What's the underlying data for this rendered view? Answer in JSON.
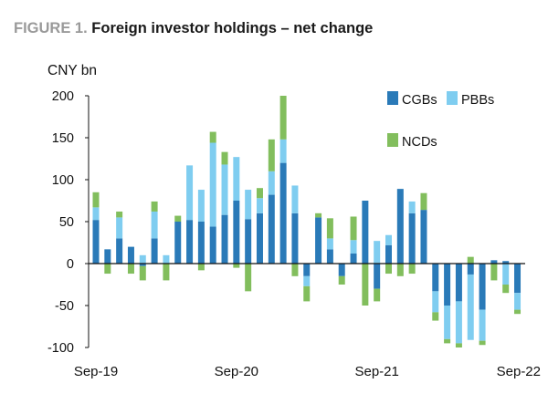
{
  "figure_label": "FIGURE 1.",
  "figure_title": "Foreign investor holdings – net change",
  "chart_data": {
    "type": "bar",
    "stacked": true,
    "title": "Foreign investor holdings – net change",
    "ylabel": "CNY bn",
    "xlabel": "",
    "ylim": [
      -100,
      200
    ],
    "yticks": [
      -100,
      -50,
      0,
      50,
      100,
      150,
      200
    ],
    "ytick_labels": [
      "-100",
      "-50",
      "0",
      "50",
      "100",
      "150",
      "200"
    ],
    "grid": false,
    "legend": [
      "CGBs",
      "PBBs",
      "NCDs"
    ],
    "legend_position": "top-right",
    "x_tick_labels": [
      {
        "index": 0,
        "label": "Sep-19"
      },
      {
        "index": 12,
        "label": "Sep-20"
      },
      {
        "index": 24,
        "label": "Sep-21"
      },
      {
        "index": 36,
        "label": "Sep-22"
      }
    ],
    "categories": [
      "Sep-19",
      "Oct-19",
      "Nov-19",
      "Dec-19",
      "Jan-20",
      "Feb-20",
      "Mar-20",
      "Apr-20",
      "May-20",
      "Jun-20",
      "Jul-20",
      "Aug-20",
      "Sep-20",
      "Oct-20",
      "Nov-20",
      "Dec-20",
      "Jan-21",
      "Feb-21",
      "Mar-21",
      "Apr-21",
      "May-21",
      "Jun-21",
      "Jul-21",
      "Aug-21",
      "Sep-21",
      "Oct-21",
      "Nov-21",
      "Dec-21",
      "Jan-22",
      "Feb-22",
      "Mar-22",
      "Apr-22",
      "May-22",
      "Jun-22",
      "Jul-22",
      "Aug-22",
      "Sep-22"
    ],
    "series": [
      {
        "name": "CGBs",
        "color": "#2a7ab8",
        "values": [
          52,
          17,
          30,
          20,
          -3,
          30,
          0,
          50,
          52,
          50,
          44,
          58,
          75,
          53,
          60,
          82,
          120,
          60,
          -15,
          55,
          17,
          -15,
          12,
          75,
          -30,
          22,
          89,
          60,
          64,
          -33,
          -50,
          -45,
          -13,
          -55,
          4,
          3,
          -35
        ]
      },
      {
        "name": "PBBs",
        "color": "#7fcdf0",
        "values": [
          15,
          0,
          25,
          0,
          10,
          32,
          10,
          0,
          65,
          38,
          100,
          60,
          52,
          35,
          18,
          28,
          28,
          33,
          -12,
          0,
          13,
          0,
          16,
          0,
          27,
          12,
          0,
          14,
          0,
          -25,
          -40,
          -50,
          -78,
          -37,
          0,
          -25,
          -20
        ]
      },
      {
        "name": "NCDs",
        "color": "#82be5d",
        "values": [
          18,
          -12,
          7,
          -12,
          -17,
          12,
          -20,
          7,
          0,
          -8,
          13,
          15,
          -5,
          -33,
          12,
          38,
          52,
          -15,
          -18,
          5,
          24,
          -10,
          28,
          -50,
          -15,
          -12,
          -15,
          -12,
          20,
          -10,
          -5,
          -5,
          8,
          -5,
          -20,
          -10,
          -5
        ]
      }
    ]
  }
}
